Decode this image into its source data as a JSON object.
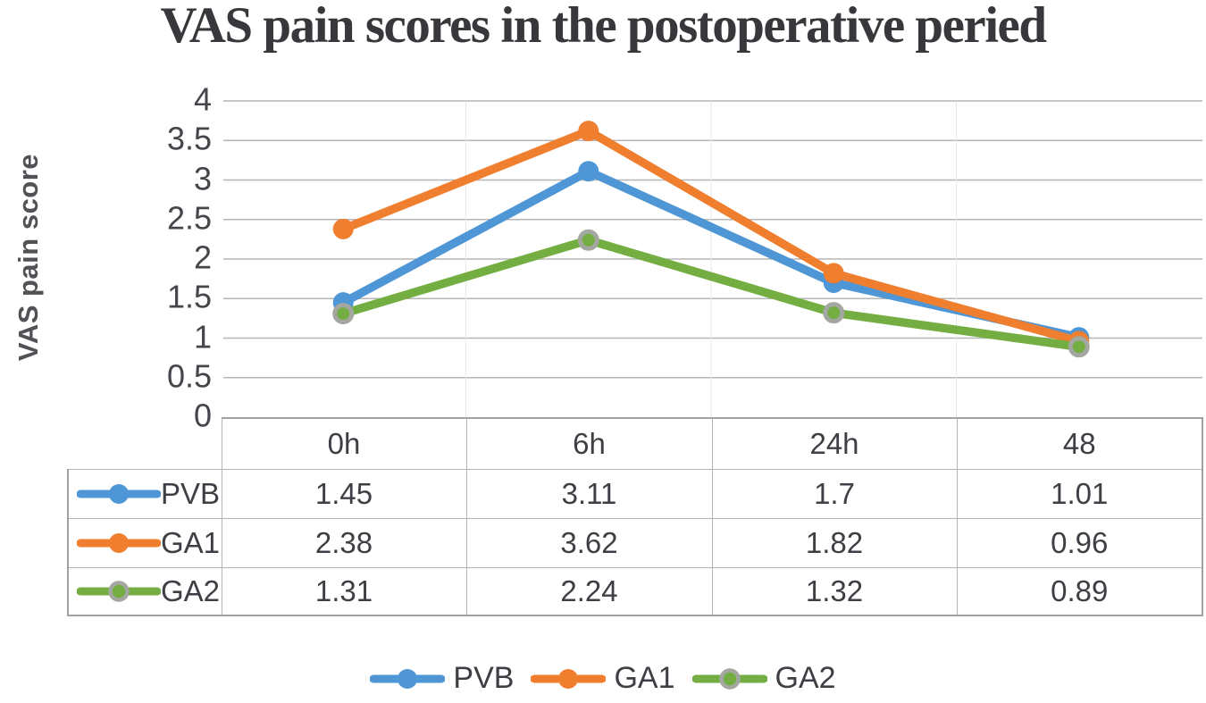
{
  "chart_data": {
    "type": "line",
    "title": "VAS pain scores in the postoperative peried",
    "xlabel": "",
    "ylabel": "VAS pain score",
    "categories": [
      "0h",
      "6h",
      "24h",
      "48"
    ],
    "series": [
      {
        "name": "PVB",
        "color": "#4e96d5",
        "marker_fill": "#4e96d5",
        "marker_stroke": null,
        "values": [
          1.45,
          3.11,
          1.7,
          1.01
        ]
      },
      {
        "name": "GA1",
        "color": "#ef7e2e",
        "marker_fill": "#ef7e2e",
        "marker_stroke": null,
        "values": [
          2.38,
          3.62,
          1.82,
          0.96
        ]
      },
      {
        "name": "GA2",
        "color": "#74ae43",
        "marker_fill": "#74ae43",
        "marker_stroke": "#a3a79f",
        "values": [
          1.31,
          2.24,
          1.32,
          0.89
        ]
      }
    ],
    "ylim": [
      0,
      4
    ],
    "yticks": [
      "4",
      "3.5",
      "3",
      "2.5",
      "2",
      "1.5",
      "1",
      "0.5",
      "0"
    ],
    "grid": "horizontal",
    "legend_position": "bottom",
    "data_table_shown": true
  },
  "table": {
    "column_headers": [
      "0h",
      "6h",
      "24h",
      "48"
    ],
    "rows": [
      {
        "label": "PVB",
        "values": [
          "1.45",
          "3.11",
          "1.7",
          "1.01"
        ]
      },
      {
        "label": "GA1",
        "values": [
          "2.38",
          "3.62",
          "1.82",
          "0.96"
        ]
      },
      {
        "label": "GA2",
        "values": [
          "1.31",
          "2.24",
          "1.32",
          "0.89"
        ]
      }
    ]
  },
  "legend": {
    "items": [
      "PVB",
      "GA1",
      "GA2"
    ]
  },
  "colors": {
    "pvb_blue": "#4e96d5",
    "ga1_orange": "#ef7e2e",
    "ga2_green": "#74ae43",
    "ga2_marker_ring_gray": "#a3a79f",
    "gridline": "#b6b6b6",
    "category_separator": "#e7e7e7",
    "table_border": "#b5b5b5",
    "text": "#3e3f44"
  }
}
